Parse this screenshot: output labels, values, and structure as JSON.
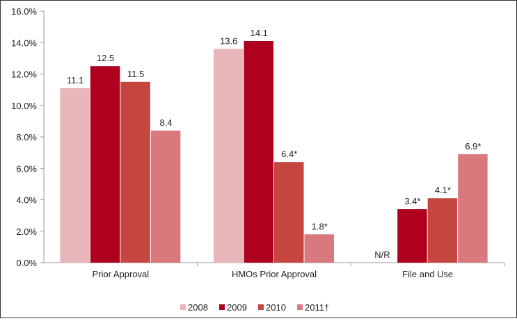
{
  "chart_data": {
    "type": "bar",
    "categories": [
      "Prior Approval",
      "HMOs Prior Approval",
      "File and Use"
    ],
    "series": [
      {
        "name": "2008",
        "color": "#e8b5b9",
        "values": [
          11.1,
          13.6,
          null
        ],
        "labels": [
          "11.1",
          "13.6",
          "N/R"
        ]
      },
      {
        "name": "2009",
        "color": "#b00020",
        "values": [
          12.5,
          14.1,
          3.4
        ],
        "labels": [
          "12.5",
          "14.1",
          "3.4*"
        ]
      },
      {
        "name": "2010",
        "color": "#c4463f",
        "values": [
          11.5,
          6.4,
          4.1
        ],
        "labels": [
          "11.5",
          "6.4*",
          "4.1*"
        ]
      },
      {
        "name": "2011†",
        "color": "#d9797e",
        "values": [
          8.4,
          1.8,
          6.9
        ],
        "labels": [
          "8.4",
          "1.8*",
          "6.9*"
        ]
      }
    ],
    "yticks": [
      "0.0%",
      "2.0%",
      "4.0%",
      "6.0%",
      "8.0%",
      "10.0%",
      "12.0%",
      "14.0%",
      "16.0%"
    ],
    "ylim": [
      0,
      16
    ],
    "grid": false,
    "legend": "bottom"
  }
}
